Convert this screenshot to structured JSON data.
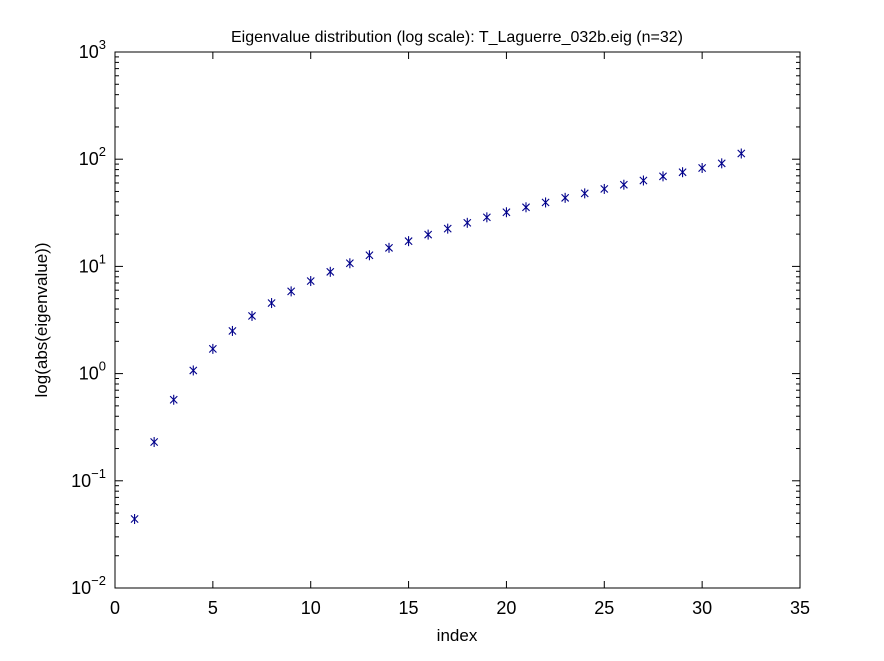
{
  "chart_data": {
    "type": "scatter",
    "title": "Eigenvalue distribution (log scale): T_Laguerre_032b.eig (n=32)",
    "xlabel": "index",
    "ylabel": "log(abs(eigenvalue))",
    "xlim": [
      0,
      35
    ],
    "ylim": [
      0.01,
      1000
    ],
    "yscale": "log",
    "grid": false,
    "marker": "asterisk",
    "color": "#00008b",
    "x_ticks": [
      0,
      5,
      10,
      15,
      20,
      25,
      30,
      35
    ],
    "y_ticks": [
      {
        "value": 0.01,
        "base": "10",
        "exp": "−2"
      },
      {
        "value": 0.1,
        "base": "10",
        "exp": "−1"
      },
      {
        "value": 1,
        "base": "10",
        "exp": "0"
      },
      {
        "value": 10,
        "base": "10",
        "exp": "1"
      },
      {
        "value": 100,
        "base": "10",
        "exp": "2"
      },
      {
        "value": 1000,
        "base": "10",
        "exp": "3"
      }
    ],
    "x": [
      1,
      2,
      3,
      4,
      5,
      6,
      7,
      8,
      9,
      10,
      11,
      12,
      13,
      14,
      15,
      16,
      17,
      18,
      19,
      20,
      21,
      22,
      23,
      24,
      25,
      26,
      27,
      28,
      29,
      30,
      31,
      32
    ],
    "values": [
      0.044,
      0.23,
      0.57,
      1.07,
      1.7,
      2.5,
      3.45,
      4.55,
      5.85,
      7.3,
      8.9,
      10.7,
      12.7,
      14.9,
      17.2,
      19.8,
      22.5,
      25.5,
      28.7,
      32.0,
      35.6,
      39.5,
      43.6,
      48.0,
      52.8,
      57.8,
      63.3,
      69.2,
      75.6,
      82.8,
      91.5,
      113.0
    ]
  }
}
